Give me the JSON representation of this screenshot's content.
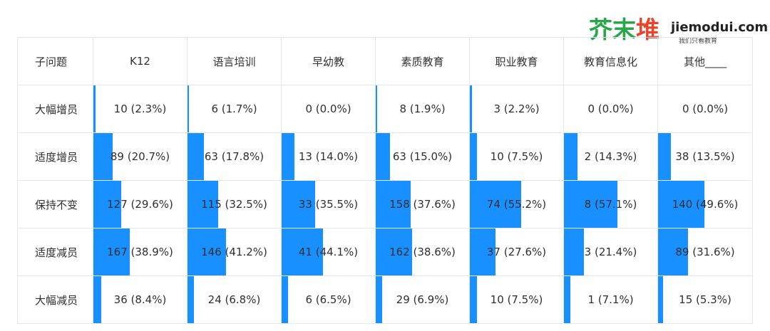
{
  "logo": {
    "cn": [
      "芥",
      "末",
      "堆"
    ],
    "url": "jiemodui.com",
    "sub": "我们只看教育"
  },
  "colors": {
    "bar": "#1890ff",
    "border": "#e4e7ed",
    "text": "#2f2f2f"
  },
  "chart_data": {
    "type": "table",
    "corner": "子问题",
    "columns": [
      "K12",
      "语言培训",
      "早幼教",
      "素质教育",
      "职业教育",
      "教育信息化",
      "其他____"
    ],
    "rows": [
      {
        "label": "大幅增员",
        "cells": [
          {
            "text": "10 (2.3%)",
            "pct": 2.3
          },
          {
            "text": "6 (1.7%)",
            "pct": 1.7
          },
          {
            "text": "0 (0.0%)",
            "pct": 0.0
          },
          {
            "text": "8 (1.9%)",
            "pct": 1.9
          },
          {
            "text": "3 (2.2%)",
            "pct": 2.2
          },
          {
            "text": "0 (0.0%)",
            "pct": 0.0
          },
          {
            "text": "0 (0.0%)",
            "pct": 0.0
          }
        ]
      },
      {
        "label": "适度增员",
        "cells": [
          {
            "text": "89 (20.7%)",
            "pct": 20.7
          },
          {
            "text": "63 (17.8%)",
            "pct": 17.8
          },
          {
            "text": "13 (14.0%)",
            "pct": 14.0
          },
          {
            "text": "63 (15.0%)",
            "pct": 15.0
          },
          {
            "text": "10 (7.5%)",
            "pct": 7.5
          },
          {
            "text": "2 (14.3%)",
            "pct": 14.3
          },
          {
            "text": "38 (13.5%)",
            "pct": 13.5
          }
        ]
      },
      {
        "label": "保持不变",
        "cells": [
          {
            "text": "127 (29.6%)",
            "pct": 29.6
          },
          {
            "text": "115 (32.5%)",
            "pct": 32.5
          },
          {
            "text": "33 (35.5%)",
            "pct": 35.5
          },
          {
            "text": "158 (37.6%)",
            "pct": 37.6
          },
          {
            "text": "74 (55.2%)",
            "pct": 55.2
          },
          {
            "text": "8 (57.1%)",
            "pct": 57.1
          },
          {
            "text": "140 (49.6%)",
            "pct": 49.6
          }
        ]
      },
      {
        "label": "适度减员",
        "cells": [
          {
            "text": "167 (38.9%)",
            "pct": 38.9
          },
          {
            "text": "146 (41.2%)",
            "pct": 41.2
          },
          {
            "text": "41 (44.1%)",
            "pct": 44.1
          },
          {
            "text": "162 (38.6%)",
            "pct": 38.6
          },
          {
            "text": "37 (27.6%)",
            "pct": 27.6
          },
          {
            "text": "3 (21.4%)",
            "pct": 21.4
          },
          {
            "text": "89 (31.6%)",
            "pct": 31.6
          }
        ]
      },
      {
        "label": "大幅减员",
        "cells": [
          {
            "text": "36 (8.4%)",
            "pct": 8.4
          },
          {
            "text": "24 (6.8%)",
            "pct": 6.8
          },
          {
            "text": "6 (6.5%)",
            "pct": 6.5
          },
          {
            "text": "29 (6.9%)",
            "pct": 6.9
          },
          {
            "text": "10 (7.5%)",
            "pct": 7.5
          },
          {
            "text": "1 (7.1%)",
            "pct": 7.1
          },
          {
            "text": "15 (5.3%)",
            "pct": 5.3
          }
        ]
      }
    ]
  }
}
